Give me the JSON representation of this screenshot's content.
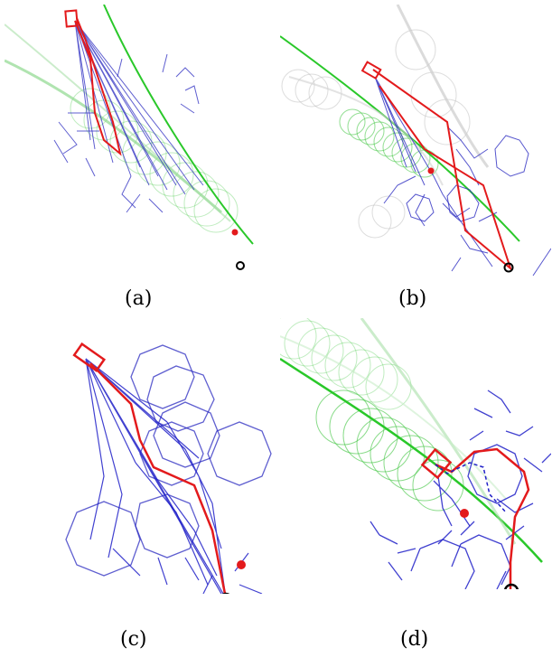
{
  "figure": {
    "captions": [
      "(a)",
      "(b)",
      "(c)",
      "(d)"
    ]
  },
  "colors": {
    "path": "#e31a1c",
    "tree": "#2020c0",
    "prediction": "#30c830",
    "goal_dot": "#e31a1c",
    "start_ring": "#000000"
  },
  "legend_items": []
}
